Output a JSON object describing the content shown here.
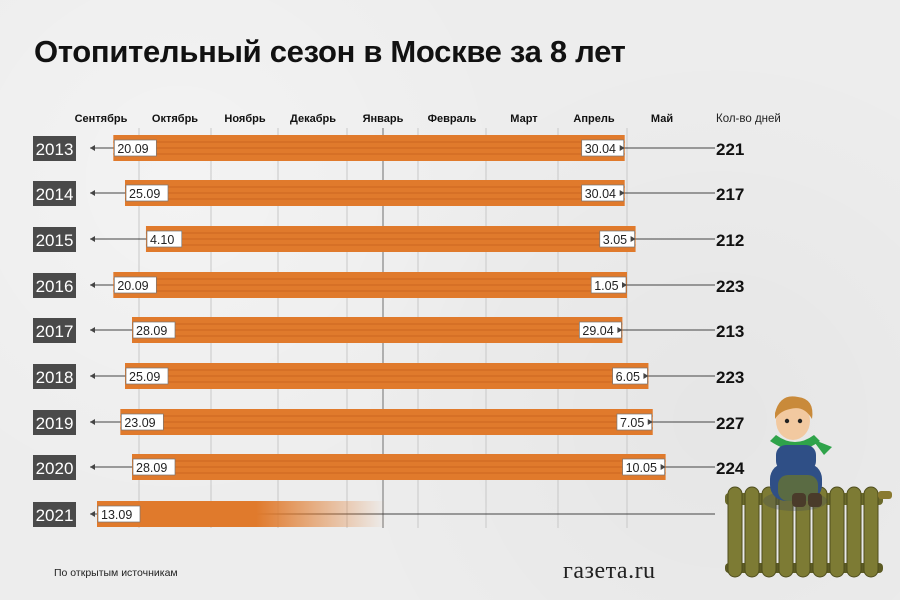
{
  "title": "Отопительный сезон в Москве за 8 лет",
  "footer_note": "По открытым источникам",
  "brand": "газета.ru",
  "colors": {
    "bar": "#e07a2c",
    "bar_stripe": "#cf6a22",
    "year_box": "#4a4a4a",
    "year_text": "#ffffff",
    "axis_line": "#444444",
    "grid": "#c8c8c8",
    "label_bg": "#ffffff"
  },
  "chart_data": {
    "type": "bar",
    "orientation": "horizontal-range",
    "x_months": [
      "Сентябрь",
      "Октябрь",
      "Ноябрь",
      "Декабрь",
      "Январь",
      "Февраль",
      "Март",
      "Апрель",
      "Май"
    ],
    "days_header": "Кол-во дней",
    "seasons": [
      {
        "year": "2013",
        "start": "20.09",
        "end": "30.04",
        "days": "221"
      },
      {
        "year": "2014",
        "start": "25.09",
        "end": "30.04",
        "days": "217"
      },
      {
        "year": "2015",
        "start": "4.10",
        "end": "3.05",
        "days": "212"
      },
      {
        "year": "2016",
        "start": "20.09",
        "end": "1.05",
        "days": "223"
      },
      {
        "year": "2017",
        "start": "28.09",
        "end": "29.04",
        "days": "213"
      },
      {
        "year": "2018",
        "start": "25.09",
        "end": "6.05",
        "days": "223"
      },
      {
        "year": "2019",
        "start": "23.09",
        "end": "7.05",
        "days": "227"
      },
      {
        "year": "2020",
        "start": "28.09",
        "end": "10.05",
        "days": "224"
      },
      {
        "year": "2021",
        "start": "13.09",
        "end": "",
        "days": ""
      }
    ]
  }
}
